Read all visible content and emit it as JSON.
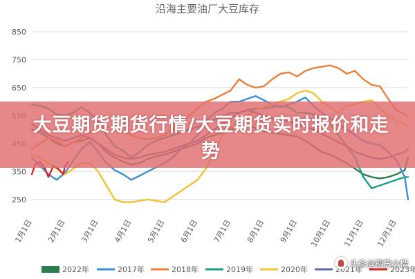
{
  "chart_data": {
    "type": "line",
    "title": "沿海主要油厂大豆库存",
    "xlabel": "",
    "ylabel": "",
    "ylim": [
      200,
      850
    ],
    "yticks": [
      250,
      350,
      450,
      550,
      650,
      750,
      850
    ],
    "xlim": [
      1,
      12.35
    ],
    "xticks": [
      {
        "v": 1,
        "label": "1月1日"
      },
      {
        "v": 2,
        "label": "2月1日"
      },
      {
        "v": 3,
        "label": "3月1日"
      },
      {
        "v": 4,
        "label": "4月1日"
      },
      {
        "v": 5,
        "label": "5月1日"
      },
      {
        "v": 6,
        "label": "6月1日"
      },
      {
        "v": 7,
        "label": "7月1日"
      },
      {
        "v": 8,
        "label": "8月1日"
      },
      {
        "v": 9,
        "label": "9月1日"
      },
      {
        "v": 10,
        "label": "10月1日"
      },
      {
        "v": 11,
        "label": "11月1日"
      },
      {
        "v": 12,
        "label": "12月1日"
      }
    ],
    "grid": true,
    "legend_position": "bottom",
    "series": [
      {
        "name": "2022年",
        "color": "#2e7d4f",
        "legend_style": "box",
        "x": [
          1,
          1.25,
          1.5,
          1.75,
          2,
          2.25,
          2.5,
          2.75,
          3,
          3.25,
          3.5,
          3.75,
          4,
          4.25,
          4.5,
          4.75,
          5,
          5.25,
          5.5,
          5.75,
          6,
          6.25,
          6.5,
          6.75,
          7,
          7.25,
          7.5,
          7.75,
          8,
          8.25,
          8.5,
          8.75,
          9,
          9.25,
          9.5,
          9.75,
          10,
          10.25,
          10.5,
          10.75,
          11,
          11.25,
          11.5,
          11.75,
          12,
          12.25,
          12.35
        ],
        "y": [
          500,
          490,
          470,
          450,
          440,
          455,
          460,
          470,
          450,
          420,
          400,
          385,
          375,
          380,
          395,
          405,
          410,
          420,
          430,
          440,
          450,
          470,
          480,
          490,
          500,
          510,
          515,
          505,
          495,
          490,
          485,
          480,
          475,
          460,
          440,
          420,
          410,
          395,
          380,
          360,
          340,
          330,
          325,
          330,
          340,
          355,
          400
        ]
      },
      {
        "name": "2017年",
        "color": "#3a8fd3",
        "legend_style": "line",
        "x": [
          1,
          1.25,
          1.5,
          1.75,
          2,
          2.25,
          2.5,
          2.75,
          3,
          3.25,
          3.5,
          3.75,
          4,
          4.25,
          4.5,
          4.75,
          5,
          5.25,
          5.5,
          5.75,
          6,
          6.25,
          6.5,
          6.75,
          7,
          7.25,
          7.5,
          7.75,
          8,
          8.25,
          8.5,
          8.75,
          9,
          9.25,
          9.5,
          9.75,
          10,
          10.25,
          10.5,
          10.75,
          11,
          11.25,
          11.5,
          11.75,
          12,
          12.25,
          12.35
        ],
        "y": [
          400,
          370,
          340,
          320,
          345,
          390,
          430,
          455,
          420,
          380,
          355,
          340,
          320,
          335,
          350,
          365,
          380,
          400,
          430,
          450,
          480,
          530,
          560,
          575,
          600,
          600,
          610,
          620,
          605,
          590,
          580,
          590,
          600,
          615,
          585,
          560,
          540,
          520,
          500,
          480,
          460,
          450,
          445,
          420,
          390,
          330,
          250
        ]
      },
      {
        "name": "2018年",
        "color": "#e8803a",
        "legend_style": "line",
        "x": [
          1,
          1.25,
          1.5,
          1.75,
          2,
          2.25,
          2.5,
          2.75,
          3,
          3.25,
          3.5,
          3.75,
          4,
          4.25,
          4.5,
          4.75,
          5,
          5.25,
          5.5,
          5.75,
          6,
          6.25,
          6.5,
          6.75,
          7,
          7.25,
          7.5,
          7.75,
          8,
          8.25,
          8.5,
          8.75,
          9,
          9.25,
          9.5,
          9.75,
          10,
          10.25,
          10.5,
          10.75,
          11,
          11.25,
          11.5,
          11.75,
          12,
          12.25,
          12.35
        ],
        "y": [
          430,
          450,
          470,
          460,
          440,
          455,
          470,
          490,
          500,
          510,
          505,
          495,
          480,
          470,
          465,
          470,
          480,
          500,
          525,
          550,
          575,
          600,
          610,
          625,
          640,
          680,
          660,
          650,
          655,
          680,
          700,
          705,
          690,
          710,
          720,
          725,
          730,
          720,
          700,
          710,
          680,
          660,
          655,
          610,
          570,
          555,
          545
        ]
      },
      {
        "name": "2019年",
        "color": "#1a9e84",
        "legend_style": "line",
        "x": [
          1,
          1.25,
          1.5,
          1.75,
          2,
          2.25,
          2.5,
          2.75,
          3,
          3.25,
          3.5,
          3.75,
          4,
          4.25,
          4.5,
          4.75,
          5,
          5.25,
          5.5,
          5.75,
          6,
          6.25,
          6.5,
          6.75,
          7,
          7.25,
          7.5,
          7.75,
          8,
          8.25,
          8.5,
          8.75,
          9,
          9.25,
          9.5,
          9.75,
          10,
          10.25,
          10.5,
          10.75,
          11,
          11.25,
          11.5,
          11.75,
          12,
          12.25,
          12.35
        ],
        "y": [
          590,
          585,
          575,
          555,
          550,
          560,
          580,
          560,
          530,
          480,
          440,
          425,
          400,
          420,
          445,
          460,
          470,
          480,
          490,
          500,
          510,
          520,
          535,
          545,
          560,
          560,
          570,
          575,
          575,
          580,
          585,
          580,
          560,
          560,
          555,
          540,
          520,
          480,
          440,
          400,
          330,
          290,
          300,
          310,
          320,
          330,
          330
        ]
      },
      {
        "name": "2020年",
        "color": "#f1c232",
        "legend_style": "line",
        "x": [
          1,
          1.25,
          1.5,
          1.75,
          2,
          2.25,
          2.5,
          2.75,
          3,
          3.25,
          3.5,
          3.75,
          4,
          4.25,
          4.5,
          4.75,
          5,
          5.25,
          5.5,
          5.75,
          6,
          6.25,
          6.5,
          6.75,
          7,
          7.25,
          7.5,
          7.75,
          8,
          8.25,
          8.5,
          8.75,
          9,
          9.25,
          9.5,
          9.75,
          10,
          10.25,
          10.5,
          10.75,
          11,
          11.25,
          11.5,
          11.75,
          12,
          12.25,
          12.35
        ],
        "y": [
          410,
          400,
          380,
          360,
          340,
          360,
          380,
          380,
          350,
          300,
          250,
          240,
          240,
          245,
          250,
          245,
          240,
          260,
          280,
          300,
          320,
          360,
          420,
          480,
          510,
          530,
          550,
          570,
          580,
          590,
          600,
          610,
          630,
          640,
          630,
          600,
          580,
          560,
          585,
          590,
          600,
          605,
          575,
          550,
          530,
          520,
          510
        ]
      },
      {
        "name": "2021年",
        "color": "#5b6aa6",
        "legend_style": "line",
        "x": [
          1,
          1.25,
          1.5,
          1.75,
          2,
          2.25,
          2.5,
          2.75,
          3,
          3.25,
          3.5,
          3.75,
          4,
          4.25,
          4.5,
          4.75,
          5,
          5.25,
          5.5,
          5.75,
          6,
          6.25,
          6.5,
          6.75,
          7,
          7.25,
          7.5,
          7.75,
          8,
          8.25,
          8.5,
          8.75,
          9,
          9.25,
          9.5,
          9.75,
          10,
          10.25,
          10.5,
          10.75,
          11,
          11.25,
          11.5,
          11.75,
          12,
          12.25,
          12.35
        ],
        "y": [
          520,
          500,
          480,
          470,
          460,
          470,
          480,
          470,
          450,
          430,
          410,
          400,
          395,
          400,
          410,
          415,
          420,
          430,
          440,
          450,
          460,
          480,
          500,
          520,
          540,
          560,
          570,
          560,
          550,
          540,
          535,
          530,
          520,
          510,
          500,
          485,
          470,
          455,
          440,
          420,
          410,
          400,
          395,
          400,
          410,
          420,
          430
        ]
      },
      {
        "name": "2023年",
        "color": "#d62728",
        "legend_style": "line",
        "x": [
          1,
          1.1,
          1.25,
          1.4,
          1.5,
          1.65,
          1.8,
          1.95,
          2,
          2.1
        ],
        "y": [
          340,
          375,
          385,
          360,
          330,
          370,
          360,
          340,
          370,
          385
        ]
      }
    ]
  },
  "banner": {
    "text": "大豆期货期货行情/大豆期货实时报价和走势"
  },
  "watermark": {
    "text": "头条@期货小楷"
  }
}
